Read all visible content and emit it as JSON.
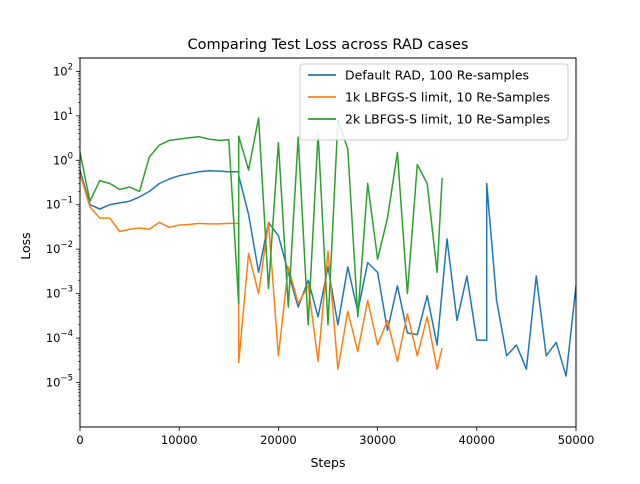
{
  "chart_data": {
    "type": "line",
    "title": "Comparing Test Loss across RAD cases",
    "xlabel": "Steps",
    "ylabel": "Loss",
    "xlim": [
      0,
      50000
    ],
    "ylim": [
      1e-06,
      200
    ],
    "yscale": "log",
    "grid": false,
    "legend_position": "top-right",
    "x_ticks": [
      0,
      10000,
      20000,
      30000,
      40000,
      50000
    ],
    "x_tick_labels": [
      "0",
      "10000",
      "20000",
      "30000",
      "40000",
      "50000"
    ],
    "y_ticks": [
      1e-05,
      0.0001,
      0.001,
      0.01,
      0.1,
      1,
      10,
      100
    ],
    "y_tick_labels": [
      {
        "base": "10",
        "exp": "−5"
      },
      {
        "base": "10",
        "exp": "−4"
      },
      {
        "base": "10",
        "exp": "−3"
      },
      {
        "base": "10",
        "exp": "−2"
      },
      {
        "base": "10",
        "exp": "−1"
      },
      {
        "base": "10",
        "exp": "0"
      },
      {
        "base": "10",
        "exp": "1"
      },
      {
        "base": "10",
        "exp": "2"
      }
    ],
    "series": [
      {
        "name": "Default RAD, 100 Re-samples",
        "color": "#1f77b4",
        "x": [
          0,
          1000,
          2000,
          3000,
          4000,
          5000,
          6000,
          7000,
          8000,
          9000,
          10000,
          11000,
          12000,
          13000,
          14000,
          15000,
          15999,
          16000,
          17000,
          18000,
          19000,
          20000,
          21000,
          22000,
          23000,
          24000,
          25000,
          26000,
          27000,
          28000,
          29000,
          30000,
          31000,
          32000,
          33000,
          34000,
          35000,
          36000,
          37000,
          38000,
          39000,
          40000,
          41000,
          41001,
          42000,
          43000,
          44000,
          45000,
          46000,
          47000,
          48000,
          49000,
          50000
        ],
        "y": [
          0.6,
          0.1,
          0.08,
          0.1,
          0.11,
          0.12,
          0.15,
          0.2,
          0.3,
          0.38,
          0.45,
          0.5,
          0.55,
          0.58,
          0.57,
          0.55,
          0.55,
          0.45,
          0.06,
          0.003,
          0.04,
          0.02,
          0.003,
          0.0005,
          0.002,
          0.0003,
          0.004,
          0.0002,
          0.004,
          0.0004,
          0.005,
          0.003,
          0.00015,
          0.0015,
          0.00013,
          0.00012,
          0.0009,
          7e-05,
          0.017,
          0.00025,
          0.0025,
          9e-05,
          9e-05,
          0.3,
          0.0007,
          4e-05,
          7e-05,
          2e-05,
          0.0025,
          4e-05,
          8e-05,
          1.4e-05,
          0.0015
        ]
      },
      {
        "name": "1k LBFGS-S limit, 10 Re-Samples",
        "color": "#ff7f0e",
        "x": [
          0,
          1000,
          2000,
          3000,
          4000,
          5000,
          6000,
          7000,
          8000,
          9000,
          10000,
          11000,
          12000,
          13000,
          14000,
          15000,
          15999,
          16000,
          17000,
          18000,
          19000,
          20000,
          21000,
          22000,
          23000,
          24000,
          25000,
          26000,
          27000,
          28000,
          29000,
          30000,
          31000,
          32000,
          33000,
          34000,
          35000,
          36000,
          36500
        ],
        "y": [
          0.5,
          0.09,
          0.05,
          0.05,
          0.025,
          0.028,
          0.03,
          0.028,
          0.04,
          0.031,
          0.035,
          0.036,
          0.038,
          0.037,
          0.037,
          0.038,
          0.038,
          2.8e-05,
          0.008,
          0.001,
          0.04,
          4e-05,
          0.004,
          0.0006,
          0.0015,
          3e-05,
          0.009,
          2e-05,
          0.0004,
          5e-05,
          0.0007,
          7e-05,
          0.00025,
          3e-05,
          0.00035,
          4e-05,
          0.0003,
          2e-05,
          6e-05
        ]
      },
      {
        "name": "2k LBFGS-S limit, 10 Re-Samples",
        "color": "#2ca02c",
        "x": [
          0,
          1000,
          2000,
          3000,
          4000,
          5000,
          6000,
          7000,
          8000,
          9000,
          10000,
          11000,
          12000,
          13000,
          14000,
          15000,
          15999,
          16000,
          17000,
          18000,
          19000,
          20000,
          21000,
          22000,
          23000,
          24000,
          25000,
          26000,
          27000,
          28000,
          29000,
          30000,
          31000,
          32000,
          33000,
          34000,
          35000,
          36000,
          36500
        ],
        "y": [
          1.5,
          0.12,
          0.35,
          0.3,
          0.22,
          0.25,
          0.2,
          1.2,
          2.2,
          2.8,
          3.0,
          3.2,
          3.4,
          3.0,
          2.8,
          2.9,
          0.0006,
          3.5,
          0.6,
          9.0,
          0.0013,
          2.5,
          0.0005,
          3.3,
          0.0002,
          4.0,
          0.0002,
          8.0,
          1.8,
          0.0003,
          0.3,
          0.006,
          0.05,
          1.5,
          0.001,
          0.8,
          0.3,
          0.003,
          0.4
        ]
      }
    ]
  }
}
